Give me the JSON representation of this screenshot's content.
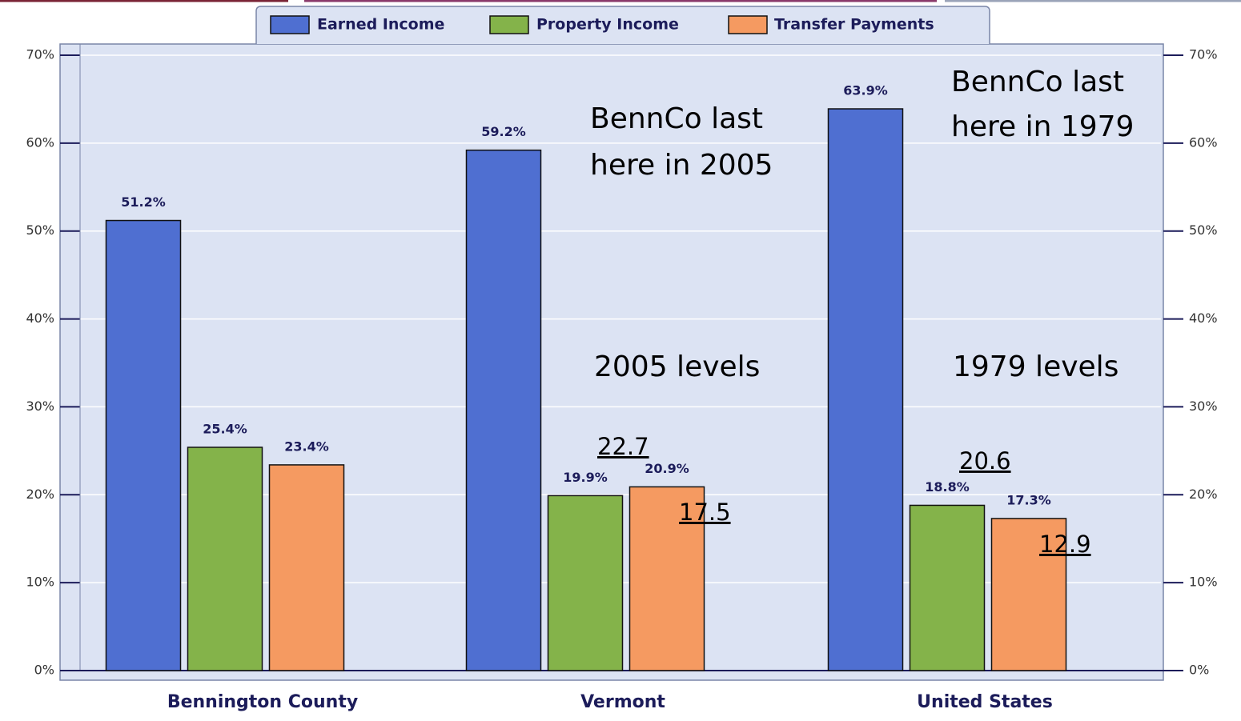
{
  "chart_data": {
    "type": "bar",
    "categories": [
      "Bennington County",
      "Vermont",
      "United States"
    ],
    "series": [
      {
        "name": "Earned Income",
        "color": "#4f6fd1",
        "values": [
          51.2,
          59.2,
          63.9
        ],
        "value_labels": [
          "51.2%",
          "59.2%",
          "63.9%"
        ]
      },
      {
        "name": "Property Income",
        "color": "#84b34a",
        "values": [
          25.4,
          19.9,
          18.8
        ],
        "value_labels": [
          "25.4%",
          "19.9%",
          "18.8%"
        ]
      },
      {
        "name": "Transfer Payments",
        "color": "#f59a61",
        "values": [
          23.4,
          20.9,
          17.3
        ],
        "value_labels": [
          "23.4%",
          "20.9%",
          "17.3%"
        ]
      }
    ],
    "ylim": [
      0,
      70
    ],
    "yticks": [
      {
        "value": 0,
        "label": "0%"
      },
      {
        "value": 10,
        "label": "10%"
      },
      {
        "value": 20,
        "label": "20%"
      },
      {
        "value": 30,
        "label": "30%"
      },
      {
        "value": 40,
        "label": "40%"
      },
      {
        "value": 50,
        "label": "50%"
      },
      {
        "value": 60,
        "label": "60%"
      },
      {
        "value": 70,
        "label": "70%"
      }
    ],
    "y2lim": [
      0,
      70
    ],
    "y2ticks": [
      {
        "value": 0,
        "label": "0%"
      },
      {
        "value": 10,
        "label": "10%"
      },
      {
        "value": 20,
        "label": "20%"
      },
      {
        "value": 30,
        "label": "30%"
      },
      {
        "value": 40,
        "label": "40%"
      },
      {
        "value": 50,
        "label": "50%"
      },
      {
        "value": 60,
        "label": "60%"
      },
      {
        "value": 70,
        "label": "70%"
      }
    ],
    "grid": true,
    "legend": "top",
    "annotations": [
      "BennCo last",
      "here in 2005",
      "2005 levels",
      "22.7",
      "17.5",
      "BennCo last",
      "here in 1979",
      "1979 levels",
      "20.6",
      "12.9"
    ]
  }
}
